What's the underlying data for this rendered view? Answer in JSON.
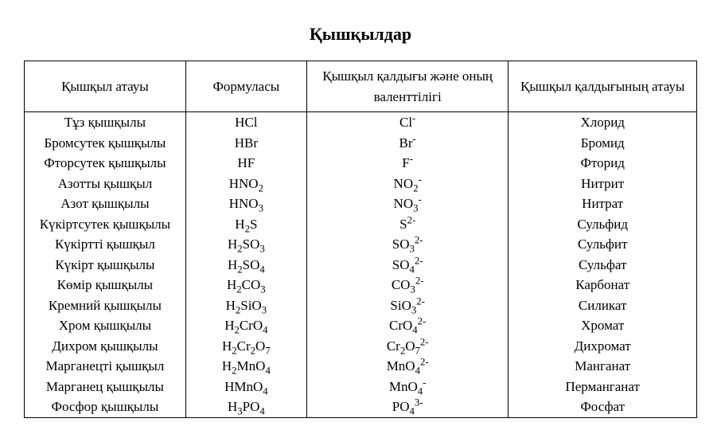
{
  "title": "Қышқылдар",
  "table": {
    "columns": [
      "Қышқыл атауы",
      "Формуласы",
      "Қышқыл қалдығы және оның валенттілігі",
      "Қышқыл қалдығының атауы"
    ],
    "column_widths_pct": [
      24,
      18,
      30,
      28
    ],
    "rows": [
      {
        "name": "Тұз қышқылы",
        "formula_html": "HCl",
        "residue_html": "Cl<sup>-</sup>",
        "residue_name": "Хлорид"
      },
      {
        "name": "Бромсутек қышқылы",
        "formula_html": "HBr",
        "residue_html": "Br<sup>-</sup>",
        "residue_name": "Бромид"
      },
      {
        "name": "Фторсутек қышқылы",
        "formula_html": "HF",
        "residue_html": "F<sup>-</sup>",
        "residue_name": "Фторид"
      },
      {
        "name": "Азотты қышқыл",
        "formula_html": "HNO<sub>2</sub>",
        "residue_html": "NO<sub>2</sub><sup>-</sup>",
        "residue_name": "Нитрит"
      },
      {
        "name": "Азот қышқылы",
        "formula_html": "HNO<sub>3</sub>",
        "residue_html": "NO<sub>3</sub><sup>-</sup>",
        "residue_name": "Нитрат"
      },
      {
        "name": "Күкіртсутек қышқылы",
        "formula_html": "H<sub>2</sub>S",
        "residue_html": "S<sup>2-</sup>",
        "residue_name": "Сульфид"
      },
      {
        "name": "Күкіртті қышқыл",
        "formula_html": "H<sub>2</sub>SO<sub>3</sub>",
        "residue_html": "SO<sub>3</sub><sup>2-</sup>",
        "residue_name": "Сульфит"
      },
      {
        "name": "Күкірт қышқылы",
        "formula_html": "H<sub>2</sub>SO<sub>4</sub>",
        "residue_html": "SO<sub>4</sub><sup>2-</sup>",
        "residue_name": "Сульфат"
      },
      {
        "name": "Көмір қышқылы",
        "formula_html": "H<sub>2</sub>CO<sub>3</sub>",
        "residue_html": "CO<sub>3</sub><sup>2-</sup>",
        "residue_name": "Карбонат"
      },
      {
        "name": "Кремний қышқылы",
        "formula_html": "H<sub>2</sub>SiO<sub>3</sub>",
        "residue_html": "SiO<sub>3</sub><sup>2-</sup>",
        "residue_name": "Силикат"
      },
      {
        "name": "Хром қышқылы",
        "formula_html": "H<sub>2</sub>CrO<sub>4</sub>",
        "residue_html": "CrO<sub>4</sub><sup>2-</sup>",
        "residue_name": "Хромат"
      },
      {
        "name": "Дихром қышқылы",
        "formula_html": "H<sub>2</sub>Cr<sub>2</sub>O<sub>7</sub>",
        "residue_html": "Cr<sub>2</sub>O<sub>7</sub><sup>2-</sup>",
        "residue_name": "Дихромат"
      },
      {
        "name": "Марганецті қышқыл",
        "formula_html": "H<sub>2</sub>MnO<sub>4</sub>",
        "residue_html": "MnO<sub>4</sub><sup>2-</sup>",
        "residue_name": "Манганат"
      },
      {
        "name": "Марганец қышқылы",
        "formula_html": "HMnO<sub>4</sub>",
        "residue_html": "MnO<sub>4</sub><sup>-</sup>",
        "residue_name": "Перманганат"
      },
      {
        "name": "Фосфор қышқылы",
        "formula_html": "H<sub>3</sub>PO<sub>4</sub>",
        "residue_html": "PO<sub>4</sub><sup>3-</sup>",
        "residue_name": "Фосфат"
      }
    ]
  },
  "style": {
    "background_color": "#ffffff",
    "text_color": "#000000",
    "border_color": "#000000",
    "font_family": "Times New Roman",
    "title_fontsize": 22,
    "body_fontsize": 17
  }
}
